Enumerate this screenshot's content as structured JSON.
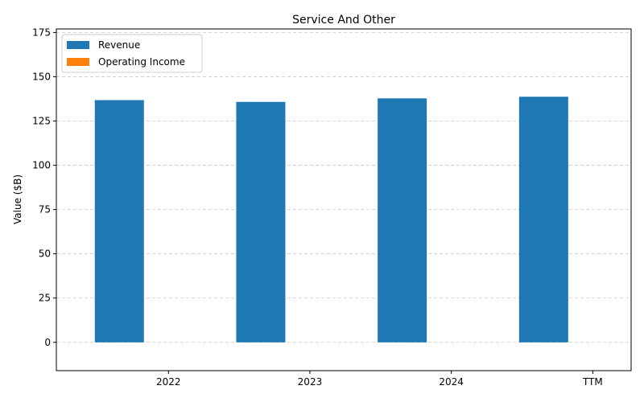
{
  "chart_data": {
    "type": "bar",
    "title": "Service And Other",
    "xlabel": "",
    "ylabel": "Value ($B)",
    "categories": [
      "2022",
      "2023",
      "2024",
      "TTM"
    ],
    "series": [
      {
        "name": "Revenue",
        "values": [
          136.8,
          135.8,
          137.8,
          138.7
        ],
        "color": "#1f77b4"
      },
      {
        "name": "Operating Income",
        "values": [
          0,
          0,
          0,
          0
        ],
        "color": "#ff7f0e"
      }
    ],
    "ylim": [
      -16,
      177
    ],
    "yticks": [
      0,
      25,
      50,
      75,
      100,
      125,
      150,
      175
    ],
    "grid": "y-dashed",
    "legend": "top-left"
  }
}
